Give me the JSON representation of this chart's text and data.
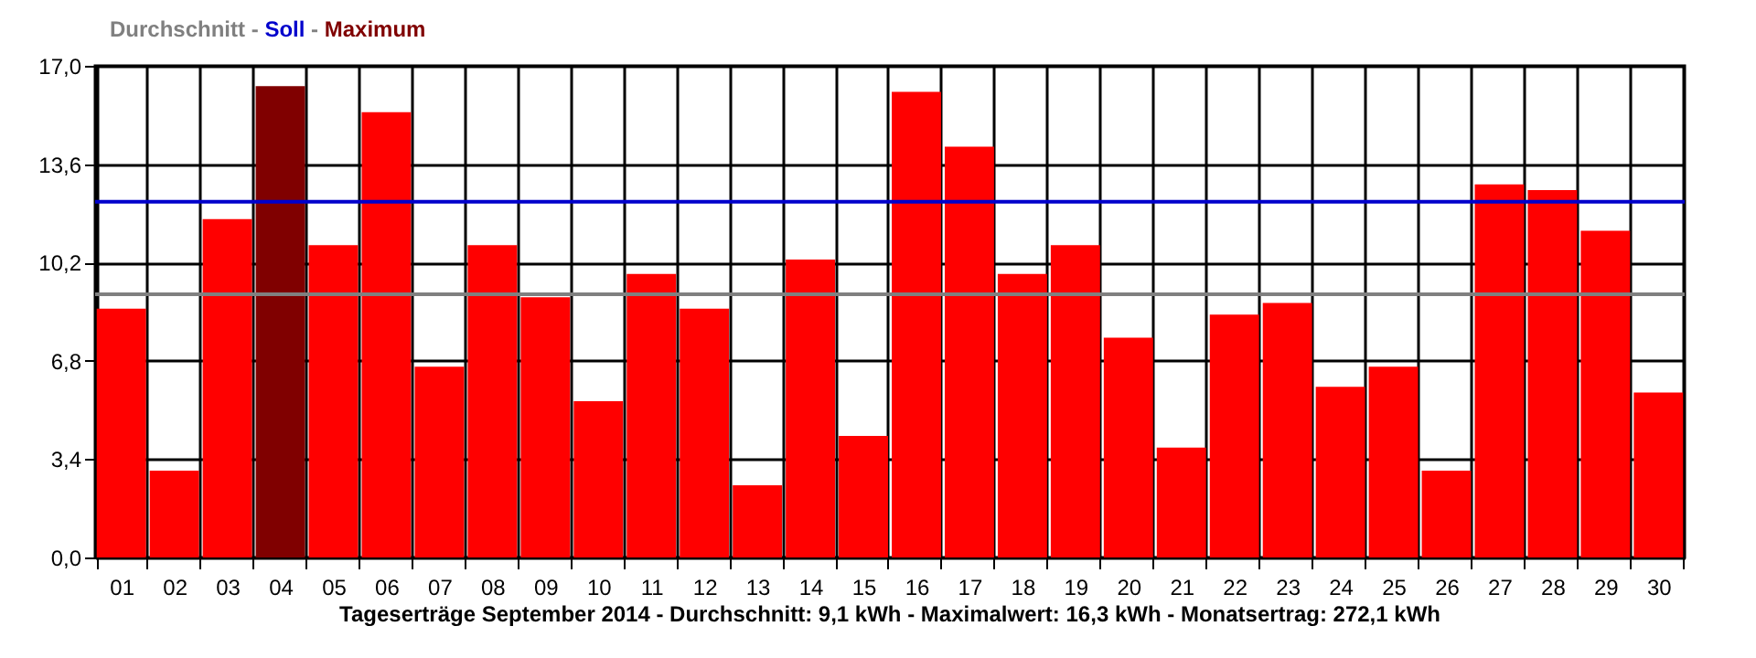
{
  "chart_data": {
    "type": "bar",
    "title": "Tageserträge September 2014 - Durchschnitt: 9,1 kWh - Maximalwert: 16,3 kWh - Monatsertrag: 272,1 kWh",
    "categories": [
      "01",
      "02",
      "03",
      "04",
      "05",
      "06",
      "07",
      "08",
      "09",
      "10",
      "11",
      "12",
      "13",
      "14",
      "15",
      "16",
      "17",
      "18",
      "19",
      "20",
      "21",
      "22",
      "23",
      "24",
      "25",
      "26",
      "27",
      "28",
      "29",
      "30"
    ],
    "values": [
      8.6,
      3.0,
      11.7,
      16.3,
      10.8,
      15.4,
      6.6,
      10.8,
      9.0,
      5.4,
      9.8,
      8.6,
      2.5,
      10.3,
      4.2,
      16.1,
      14.2,
      9.8,
      10.8,
      7.6,
      3.8,
      8.4,
      8.8,
      5.9,
      6.6,
      3.0,
      12.9,
      12.7,
      11.3,
      5.7
    ],
    "colors": [
      "#ff0000",
      "#ff0000",
      "#ff0000",
      "#800000",
      "#ff0000",
      "#ff0000",
      "#ff0000",
      "#ff0000",
      "#ff0000",
      "#ff0000",
      "#ff0000",
      "#ff0000",
      "#ff0000",
      "#ff0000",
      "#ff0000",
      "#ff0000",
      "#ff0000",
      "#ff0000",
      "#ff0000",
      "#ff0000",
      "#ff0000",
      "#ff0000",
      "#ff0000",
      "#ff0000",
      "#ff0000",
      "#ff0000",
      "#ff0000",
      "#ff0000",
      "#ff0000",
      "#ff0000"
    ],
    "ylim": [
      0,
      17
    ],
    "yticks": [
      {
        "value": 0,
        "label": "0,0"
      },
      {
        "value": 3.4,
        "label": "3,4"
      },
      {
        "value": 6.8,
        "label": "6,8"
      },
      {
        "value": 10.2,
        "label": "10,2"
      },
      {
        "value": 13.6,
        "label": "13,6"
      },
      {
        "value": 17,
        "label": "17,0"
      }
    ],
    "grid": true,
    "ref_lines": [
      {
        "axis": "y",
        "value": 9.1,
        "color": "#808080"
      },
      {
        "axis": "y",
        "value": 12.3,
        "color": "#0000cc"
      }
    ],
    "annotations": [
      "Durchschnitt - Soll - Maximum"
    ]
  }
}
